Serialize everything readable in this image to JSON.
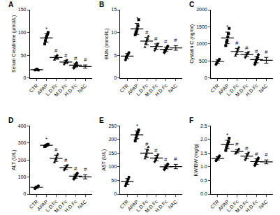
{
  "chart_data": [
    {
      "type": "scatter",
      "title": "A",
      "y_label": "Serum Creatinine (μmol/L)",
      "color": "#000000",
      "grid": false,
      "categories": [
        "CTR",
        "APAP",
        "L.D.Fc",
        "M.D.Fc",
        "H.D.Fc",
        "NAC"
      ],
      "ylim": [
        0,
        150
      ],
      "yticks": [
        0,
        50,
        100,
        150
      ],
      "series": [
        {
          "name": "CTR",
          "marker": "circle",
          "values": [
            17,
            18,
            19,
            20,
            18,
            17
          ],
          "mean": 18,
          "sd": 1.2
        },
        {
          "name": "APAP",
          "marker": "square",
          "values": [
            75,
            82,
            88,
            92,
            96,
            100
          ],
          "mean": 88,
          "sd": 9,
          "annotation": "*"
        },
        {
          "name": "L.D.Fc",
          "marker": "triangle-up",
          "values": [
            40,
            43,
            45,
            47,
            50,
            42
          ],
          "mean": 45,
          "sd": 3.5,
          "annotation": "#"
        },
        {
          "name": "M.D.Fc",
          "marker": "triangle-down",
          "values": [
            30,
            33,
            35,
            37,
            40,
            34
          ],
          "mean": 35,
          "sd": 3.5,
          "annotation": "#"
        },
        {
          "name": "H.D.Fc",
          "marker": "diamond",
          "values": [
            22,
            25,
            28,
            30,
            33,
            27
          ],
          "mean": 28,
          "sd": 4,
          "annotation": "#"
        },
        {
          "name": "NAC",
          "marker": "circle-open",
          "values": [
            20,
            22,
            25,
            27,
            30,
            24
          ],
          "mean": 25,
          "sd": 3.5,
          "annotation": "#"
        }
      ]
    },
    {
      "type": "scatter",
      "title": "B",
      "y_label": "BUN (mmol/L)",
      "color": "#000000",
      "grid": false,
      "categories": [
        "CTR",
        "APAP",
        "L.D.Fc",
        "M.D.Fc",
        "H.D.Fc",
        "NAC"
      ],
      "ylim": [
        0,
        15
      ],
      "yticks": [
        0,
        5,
        10,
        15
      ],
      "series": [
        {
          "name": "CTR",
          "marker": "circle",
          "values": [
            4.0,
            4.5,
            4.8,
            5.0,
            5.3,
            5.6
          ],
          "mean": 4.8,
          "sd": 0.55
        },
        {
          "name": "APAP",
          "marker": "square",
          "values": [
            9.5,
            10.0,
            10.3,
            10.8,
            11.5,
            12.8
          ],
          "mean": 10.8,
          "sd": 1.2,
          "annotation": "*"
        },
        {
          "name": "L.D.Fc",
          "marker": "triangle-up",
          "values": [
            6.8,
            7.5,
            8.0,
            8.3,
            8.6,
            9.2
          ],
          "mean": 8.1,
          "sd": 0.8,
          "annotation": "#"
        },
        {
          "name": "M.D.Fc",
          "marker": "triangle-down",
          "values": [
            6.0,
            6.4,
            6.8,
            7.0,
            7.3,
            7.6
          ],
          "mean": 6.9,
          "sd": 0.6,
          "annotation": "#"
        },
        {
          "name": "H.D.Fc",
          "marker": "diamond",
          "values": [
            5.6,
            6.0,
            6.2,
            6.4,
            6.7,
            7.0
          ],
          "mean": 6.3,
          "sd": 0.5,
          "annotation": "#"
        },
        {
          "name": "NAC",
          "marker": "circle-open",
          "values": [
            5.8,
            6.2,
            6.5,
            6.7,
            7.0,
            7.2
          ],
          "mean": 6.6,
          "sd": 0.5,
          "annotation": "#"
        }
      ]
    },
    {
      "type": "scatter",
      "title": "C",
      "y_label": "Cystatin C (ng/ml)",
      "color": "#000000",
      "grid": false,
      "categories": [
        "CTR",
        "APAP",
        "L.D.Fc",
        "M.D.Fc",
        "H.D.Fc",
        "NAC"
      ],
      "ylim": [
        0,
        2000
      ],
      "yticks": [
        0,
        500,
        1000,
        1500,
        2000
      ],
      "series": [
        {
          "name": "CTR",
          "marker": "circle",
          "values": [
            400,
            440,
            470,
            500,
            520,
            550
          ],
          "mean": 480,
          "sd": 50
        },
        {
          "name": "APAP",
          "marker": "square",
          "values": [
            950,
            1050,
            1100,
            1200,
            1300,
            1450
          ],
          "mean": 1175,
          "sd": 170,
          "annotation": "*"
        },
        {
          "name": "L.D.Fc",
          "marker": "triangle-up",
          "values": [
            650,
            700,
            760,
            800,
            850,
            900
          ],
          "mean": 777,
          "sd": 90,
          "annotation": "#"
        },
        {
          "name": "M.D.Fc",
          "marker": "triangle-down",
          "values": [
            600,
            640,
            680,
            700,
            730,
            760
          ],
          "mean": 685,
          "sd": 55,
          "annotation": "#"
        },
        {
          "name": "H.D.Fc",
          "marker": "diamond",
          "values": [
            400,
            460,
            520,
            560,
            600,
            680
          ],
          "mean": 537,
          "sd": 95,
          "annotation": "#"
        },
        {
          "name": "NAC",
          "marker": "circle-open",
          "values": [
            400,
            450,
            500,
            540,
            580,
            640
          ],
          "mean": 518,
          "sd": 85,
          "annotation": "#"
        }
      ]
    },
    {
      "type": "scatter",
      "title": "D",
      "y_label": "ALT (U/L)",
      "color": "#000000",
      "grid": false,
      "categories": [
        "CTR",
        "APAP",
        "L.D.Fc",
        "M.D.Fc",
        "H.D.Fc",
        "NAC"
      ],
      "ylim": [
        0,
        400
      ],
      "yticks": [
        0,
        100,
        200,
        300,
        400
      ],
      "series": [
        {
          "name": "CTR",
          "marker": "circle",
          "values": [
            32,
            36,
            40,
            42,
            45,
            48
          ],
          "mean": 40,
          "sd": 6
        },
        {
          "name": "APAP",
          "marker": "square",
          "values": [
            278,
            282,
            285,
            288,
            290,
            292
          ],
          "mean": 286,
          "sd": 5,
          "annotation": "*"
        },
        {
          "name": "L.D.Fc",
          "marker": "triangle-up",
          "values": [
            185,
            195,
            205,
            215,
            225,
            235
          ],
          "mean": 210,
          "sd": 18,
          "annotation": "#"
        },
        {
          "name": "M.D.Fc",
          "marker": "triangle-down",
          "values": [
            140,
            148,
            152,
            158,
            165,
            170
          ],
          "mean": 155,
          "sd": 11,
          "annotation": "#"
        },
        {
          "name": "H.D.Fc",
          "marker": "diamond",
          "values": [
            88,
            95,
            100,
            108,
            115,
            122
          ],
          "mean": 105,
          "sd": 12,
          "annotation": "#"
        },
        {
          "name": "NAC",
          "marker": "circle-open",
          "values": [
            85,
            92,
            98,
            105,
            110,
            118
          ],
          "mean": 101,
          "sd": 12,
          "annotation": "#"
        }
      ]
    },
    {
      "type": "scatter",
      "title": "E",
      "y_label": "AST (U/L)",
      "color": "#000000",
      "grid": false,
      "categories": [
        "CTR",
        "APAP",
        "L.D.Fc",
        "M.D.Fc",
        "H.D.Fc",
        "NAC"
      ],
      "ylim": [
        0,
        250
      ],
      "yticks": [
        0,
        50,
        100,
        150,
        200,
        250
      ],
      "series": [
        {
          "name": "CTR",
          "marker": "circle",
          "values": [
            30,
            38,
            42,
            48,
            55,
            62
          ],
          "mean": 46,
          "sd": 11
        },
        {
          "name": "APAP",
          "marker": "square",
          "values": [
            195,
            205,
            215,
            222,
            228,
            235
          ],
          "mean": 217,
          "sd": 14,
          "annotation": "*"
        },
        {
          "name": "L.D.Fc",
          "marker": "triangle-up",
          "values": [
            130,
            138,
            145,
            155,
            162,
            172
          ],
          "mean": 150,
          "sd": 15,
          "annotation": "#"
        },
        {
          "name": "M.D.Fc",
          "marker": "triangle-down",
          "values": [
            118,
            124,
            128,
            134,
            140,
            146
          ],
          "mean": 132,
          "sd": 10,
          "annotation": "#"
        },
        {
          "name": "H.D.Fc",
          "marker": "diamond",
          "values": [
            90,
            95,
            98,
            102,
            106,
            110
          ],
          "mean": 100,
          "sd": 7,
          "annotation": "#"
        },
        {
          "name": "NAC",
          "marker": "circle-open",
          "values": [
            90,
            95,
            99,
            103,
            107,
            112
          ],
          "mean": 101,
          "sd": 8,
          "annotation": "#"
        }
      ]
    },
    {
      "type": "scatter",
      "title": "F",
      "y_label": "KW/BW (mg/g)",
      "color": "#000000",
      "grid": false,
      "categories": [
        "CTR",
        "APAP",
        "L.D.Fc",
        "M.D.Fc",
        "H.D.Fc",
        "NAC"
      ],
      "ylim": [
        0,
        2.5
      ],
      "yticks": [
        {
          "value": 0,
          "label": "0.0"
        },
        0.5,
        {
          "value": 1,
          "label": "1.0"
        },
        1.5,
        {
          "value": 2,
          "label": "2.0"
        },
        2.5
      ],
      "series": [
        {
          "name": "CTR",
          "marker": "circle",
          "values": [
            1.22,
            1.26,
            1.3,
            1.33,
            1.36,
            1.4
          ],
          "mean": 1.31,
          "sd": 0.06
        },
        {
          "name": "APAP",
          "marker": "square",
          "values": [
            1.6,
            1.7,
            1.78,
            1.85,
            1.92,
            2.05
          ],
          "mean": 1.82,
          "sd": 0.15,
          "annotation": "*"
        },
        {
          "name": "L.D.Fc",
          "marker": "triangle-up",
          "values": [
            1.48,
            1.52,
            1.55,
            1.58,
            1.62,
            1.66
          ],
          "mean": 1.57,
          "sd": 0.06,
          "annotation": "#"
        },
        {
          "name": "M.D.Fc",
          "marker": "triangle-down",
          "values": [
            1.25,
            1.32,
            1.38,
            1.42,
            1.47,
            1.52
          ],
          "mean": 1.39,
          "sd": 0.1,
          "annotation": "#"
        },
        {
          "name": "H.D.Fc",
          "marker": "diamond",
          "values": [
            1.05,
            1.12,
            1.18,
            1.22,
            1.27,
            1.32
          ],
          "mean": 1.19,
          "sd": 0.1,
          "annotation": "#"
        },
        {
          "name": "NAC",
          "marker": "circle-open",
          "values": [
            1.08,
            1.12,
            1.16,
            1.2,
            1.24,
            1.28
          ],
          "mean": 1.18,
          "sd": 0.07,
          "annotation": "#"
        }
      ]
    }
  ]
}
